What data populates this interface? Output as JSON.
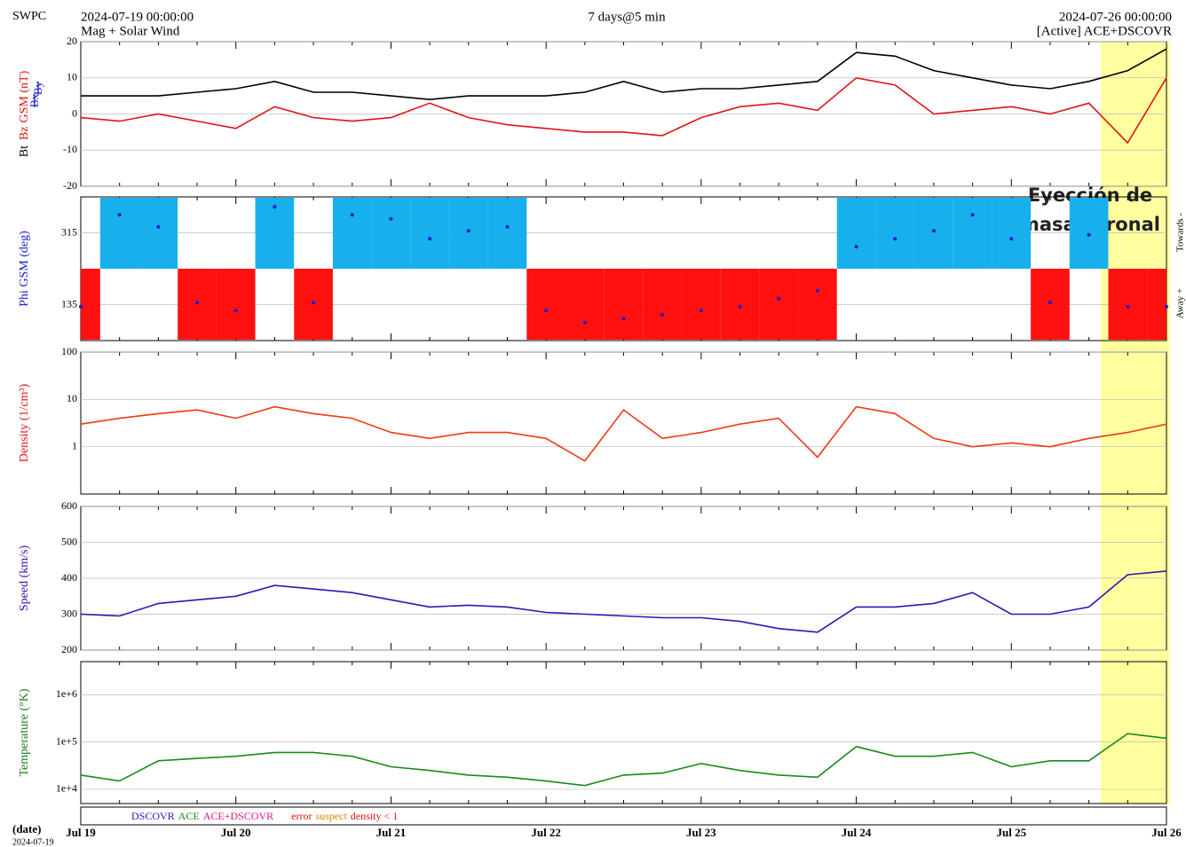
{
  "header": {
    "source": "SWPC",
    "start": "2024-07-19 00:00:00",
    "subtitle": "Mag + Solar Wind",
    "span": "7 days@5 min",
    "end": "2024-07-26 00:00:00",
    "status": "[Active] ACE+DSCOVR"
  },
  "annotation": [
    "Eyección  de",
    "masa coronal"
  ],
  "side_labels": {
    "towards": "Towards -",
    "away": "Away +"
  },
  "legend": [
    {
      "text": "DSCOVR",
      "color": "#1a1acc"
    },
    {
      "text": "ACE",
      "color": "#1a8a1a"
    },
    {
      "text": "ACE+DSCOVR",
      "color": "#e0147a"
    },
    {
      "text": "error",
      "color": "#e01414"
    },
    {
      "text": "suspect",
      "color": "#d08c00"
    },
    {
      "text": "density < 1",
      "color": "#e01414"
    }
  ],
  "time_axis": {
    "label": "(date)",
    "start_label": "2024-07-19",
    "categories": [
      "Jul 19",
      null,
      null,
      null,
      "Jul 20",
      null,
      null,
      null,
      "Jul 21",
      null,
      null,
      null,
      "Jul 22",
      null,
      null,
      null,
      "Jul 23",
      null,
      null,
      null,
      "Jul 24",
      null,
      null,
      null,
      "Jul 25",
      null,
      null,
      null,
      "Jul 26"
    ]
  },
  "chart_data": [
    {
      "type": "line",
      "y_label": "GSM (nT)",
      "label_color": "#e01414",
      "crossed_labels": [
        "Bx",
        "By"
      ],
      "crossed_color": "#1a1acc",
      "ylim": [
        -20,
        20
      ],
      "yticks": [
        -20,
        -10,
        0,
        10,
        20
      ],
      "grid": true,
      "series": [
        {
          "name": "Bt",
          "color": "#000000",
          "values": [
            5,
            5,
            5,
            6,
            7,
            9,
            6,
            6,
            5,
            4,
            5,
            5,
            5,
            6,
            9,
            6,
            7,
            7,
            8,
            9,
            17,
            16,
            12,
            10,
            8,
            7,
            9,
            12,
            18
          ]
        },
        {
          "name": "Bz",
          "color": "#e01414",
          "values": [
            -1,
            -2,
            0,
            -2,
            -4,
            2,
            -1,
            -2,
            -1,
            3,
            -1,
            -3,
            -4,
            -5,
            -5,
            -6,
            -1,
            2,
            3,
            1,
            10,
            8,
            0,
            1,
            2,
            0,
            3,
            -8,
            10
          ]
        }
      ]
    },
    {
      "type": "scatter",
      "y_label": "Phi GSM (deg)",
      "label_color": "#1a1acc",
      "color": "#1a1acc",
      "band_colors": [
        "#18b0ec",
        "#ff1010"
      ],
      "ylim": [
        45,
        405
      ],
      "yticks": [
        135,
        315
      ],
      "grid": true,
      "values": [
        130,
        360,
        330,
        140,
        120,
        380,
        140,
        360,
        350,
        300,
        320,
        330,
        120,
        90,
        100,
        110,
        120,
        130,
        150,
        170,
        280,
        300,
        320,
        360,
        300,
        140,
        310,
        130,
        130
      ]
    },
    {
      "type": "line",
      "y_label": "Density (1/cm³)",
      "label_color": "#e01414",
      "log_scale": true,
      "ylim": [
        0.1,
        100
      ],
      "yticks": [
        1,
        10,
        100
      ],
      "grid": true,
      "series": [
        {
          "name": "Density",
          "color": "#f03a10",
          "values": [
            3,
            4,
            5,
            6,
            4,
            7,
            5,
            4,
            2,
            1.5,
            2,
            2,
            1.5,
            0.5,
            6,
            1.5,
            2,
            3,
            4,
            0.6,
            7,
            5,
            1.5,
            1,
            1.2,
            1,
            1.5,
            2,
            3
          ]
        }
      ]
    },
    {
      "type": "line",
      "y_label": "Speed (km/s)",
      "label_color": "#3a10b0",
      "ylim": [
        200,
        600
      ],
      "yticks": [
        200,
        300,
        400,
        500,
        600
      ],
      "grid": true,
      "series": [
        {
          "name": "Speed",
          "color": "#3a10b0",
          "values": [
            300,
            295,
            330,
            340,
            350,
            380,
            370,
            360,
            340,
            320,
            325,
            320,
            305,
            300,
            295,
            290,
            290,
            280,
            260,
            250,
            320,
            320,
            330,
            360,
            300,
            300,
            320,
            410,
            420
          ]
        }
      ]
    },
    {
      "type": "line",
      "y_label": "Temperature (°K)",
      "label_color": "#1a7a1a",
      "log_scale": true,
      "ylim": [
        5000,
        5000000
      ],
      "yticks": [
        {
          "value": 10000,
          "label": "1e+4"
        },
        {
          "value": 100000,
          "label": "1e+5"
        },
        {
          "value": 1000000,
          "label": "1e+6"
        }
      ],
      "grid": true,
      "series": [
        {
          "name": "Temperature",
          "color": "#1a8a1a",
          "values": [
            20000,
            15000,
            40000,
            45000,
            50000,
            60000,
            60000,
            50000,
            30000,
            25000,
            20000,
            18000,
            15000,
            12000,
            20000,
            22000,
            35000,
            25000,
            20000,
            18000,
            80000,
            50000,
            50000,
            60000,
            30000,
            40000,
            40000,
            150000,
            120000
          ]
        }
      ]
    }
  ]
}
